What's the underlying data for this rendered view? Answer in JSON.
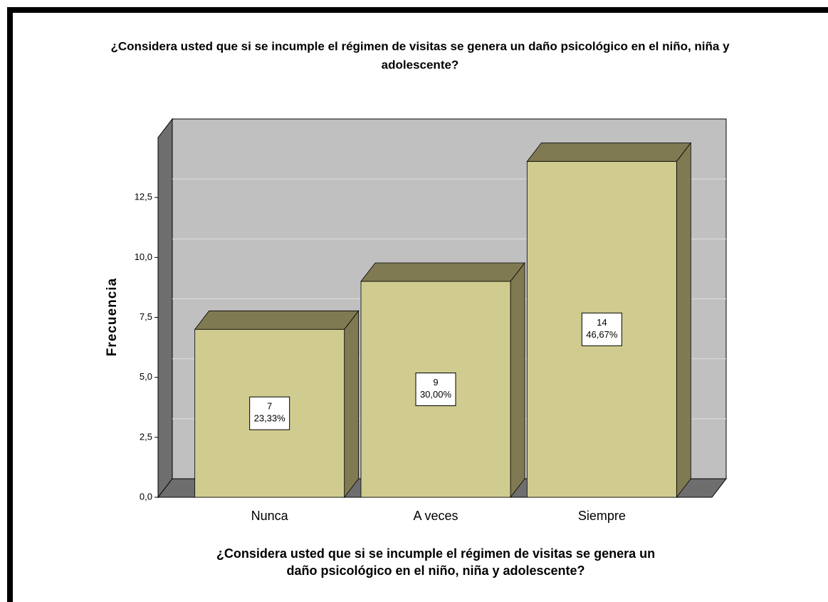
{
  "chart_data": {
    "type": "bar3d",
    "title": [
      "¿Considera usted que si se incumple el régimen de visitas se genera un daño psicológico  en el niño, niña y",
      "adolescente?"
    ],
    "xlabel": [
      "¿Considera usted que si se incumple el régimen de visitas se genera un",
      "daño psicológico  en el niño, niña y adolescente?"
    ],
    "ylabel": "Frecuencia",
    "categories": [
      "Nunca",
      "A veces",
      "Siempre"
    ],
    "values": [
      7,
      9,
      14
    ],
    "percent_labels": [
      "23,33%",
      "30,00%",
      "46,67%"
    ],
    "color": "#d0cc8f",
    "ylim": [
      0,
      15
    ],
    "yticks": [
      {
        "value": 0,
        "label": "0,0"
      },
      {
        "value": 2.5,
        "label": "2,5"
      },
      {
        "value": 5,
        "label": "5,0"
      },
      {
        "value": 7.5,
        "label": "7,5"
      },
      {
        "value": 10,
        "label": "10,0"
      },
      {
        "value": 12.5,
        "label": "12,5"
      }
    ],
    "grid": true
  }
}
